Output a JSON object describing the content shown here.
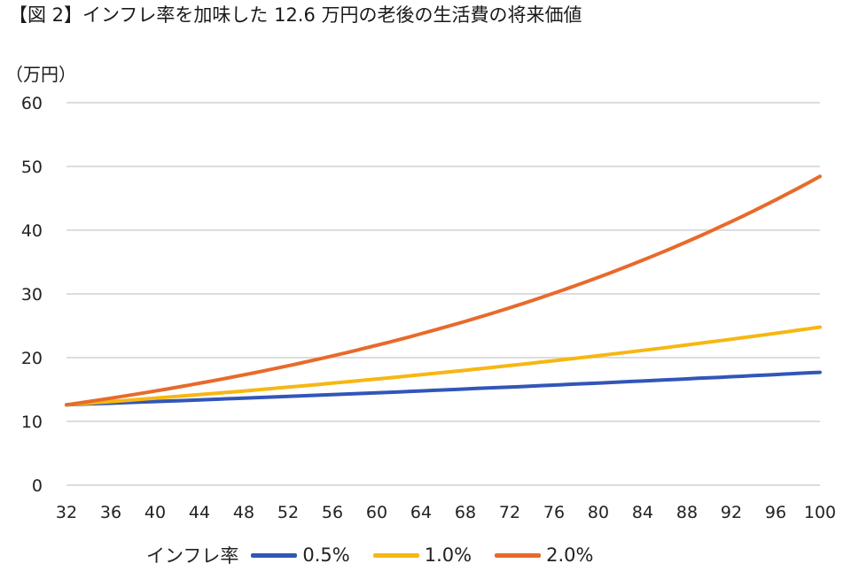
{
  "title": "【図 2】インフレ率を加味した 12.6 万円の老後の生活費の将来価値",
  "unit_label": "（万円）",
  "legend": {
    "title": "インフレ率",
    "items": [
      {
        "label": "0.5%",
        "color": "#3256b8"
      },
      {
        "label": "1.0%",
        "color": "#f7b712"
      },
      {
        "label": "2.0%",
        "color": "#e86a2b"
      }
    ]
  },
  "chart_data": {
    "type": "line",
    "title": "【図 2】インフレ率を加味した 12.6 万円の老後の生活費の将来価値",
    "ylabel": "（万円）",
    "xlabel": "",
    "x_start": 32,
    "x_end": 100,
    "xlim": [
      32,
      100
    ],
    "ylim": [
      0,
      60
    ],
    "x_ticks": [
      32,
      36,
      40,
      44,
      48,
      52,
      56,
      60,
      64,
      68,
      72,
      76,
      80,
      84,
      88,
      92,
      96,
      100
    ],
    "y_ticks": [
      0,
      10,
      20,
      30,
      40,
      50,
      60
    ],
    "grid": true,
    "legend_position": "bottom",
    "series": [
      {
        "name": "0.5%",
        "color": "#3256b8",
        "values": [
          12.6,
          12.66,
          12.73,
          12.79,
          12.85,
          12.92,
          12.98,
          13.05,
          13.11,
          13.18,
          13.24,
          13.31,
          13.38,
          13.44,
          13.51,
          13.58,
          13.65,
          13.72,
          13.78,
          13.85,
          13.92,
          13.99,
          14.06,
          14.13,
          14.2,
          14.27,
          14.34,
          14.42,
          14.49,
          14.56,
          14.63,
          14.71,
          14.78,
          14.86,
          14.93,
          15.0,
          15.08,
          15.16,
          15.23,
          15.31,
          15.39,
          15.46,
          15.54,
          15.62,
          15.7,
          15.78,
          15.86,
          15.94,
          16.02,
          16.1,
          16.18,
          16.26,
          16.34,
          16.42,
          16.51,
          16.59,
          16.67,
          16.76,
          16.84,
          16.92,
          17.01,
          17.09,
          17.18,
          17.27,
          17.35,
          17.44,
          17.53,
          17.62,
          17.7
        ]
      },
      {
        "name": "1.0%",
        "color": "#f7b712",
        "values": [
          12.6,
          12.73,
          12.85,
          12.98,
          13.11,
          13.24,
          13.38,
          13.51,
          13.64,
          13.78,
          13.92,
          14.06,
          14.2,
          14.34,
          14.48,
          14.63,
          14.77,
          14.92,
          15.07,
          15.22,
          15.37,
          15.53,
          15.68,
          15.84,
          16.0,
          16.16,
          16.32,
          16.48,
          16.65,
          16.81,
          16.98,
          17.15,
          17.32,
          17.5,
          17.67,
          17.85,
          18.03,
          18.21,
          18.39,
          18.57,
          18.76,
          18.95,
          19.14,
          19.33,
          19.52,
          19.72,
          19.91,
          20.11,
          20.31,
          20.52,
          20.72,
          20.93,
          21.14,
          21.35,
          21.56,
          21.78,
          22.0,
          22.22,
          22.44,
          22.66,
          22.89,
          23.12,
          23.35,
          23.58,
          23.82,
          24.06,
          24.3,
          24.54,
          24.79
        ]
      },
      {
        "name": "2.0%",
        "color": "#e86a2b",
        "values": [
          12.6,
          12.85,
          13.11,
          13.37,
          13.64,
          13.91,
          14.19,
          14.47,
          14.76,
          15.06,
          15.36,
          15.67,
          15.98,
          16.3,
          16.63,
          16.96,
          17.3,
          17.64,
          18.0,
          18.36,
          18.72,
          19.1,
          19.48,
          19.87,
          20.27,
          20.67,
          21.09,
          21.51,
          21.94,
          22.38,
          22.82,
          23.28,
          23.75,
          24.22,
          24.71,
          25.2,
          25.7,
          26.22,
          26.74,
          27.28,
          27.82,
          28.38,
          28.95,
          29.53,
          30.12,
          30.72,
          31.33,
          31.96,
          32.6,
          33.25,
          33.92,
          34.6,
          35.29,
          36.0,
          36.71,
          37.45,
          38.2,
          38.96,
          39.74,
          40.54,
          41.35,
          42.17,
          43.02,
          43.88,
          44.75,
          45.65,
          46.56,
          47.49,
          48.44
        ]
      }
    ]
  }
}
